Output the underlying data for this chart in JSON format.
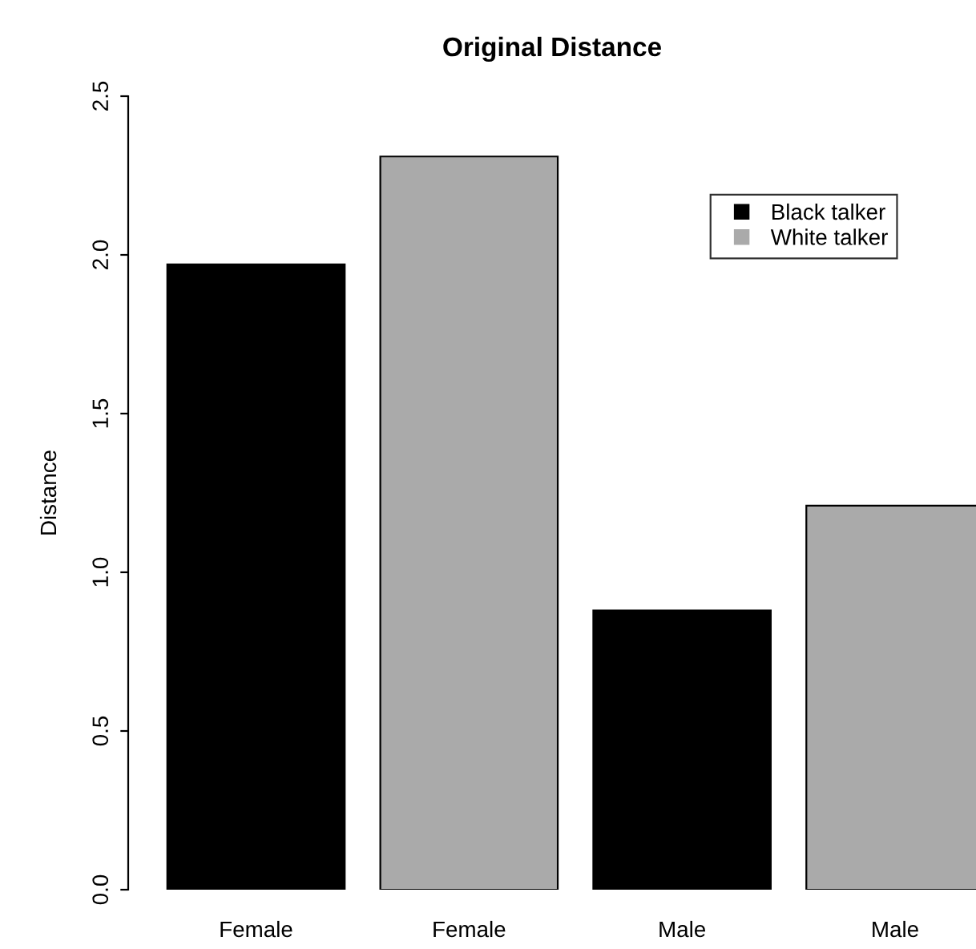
{
  "chart_data": {
    "type": "bar",
    "title": "Original Distance",
    "ylabel": "Distance",
    "categories": [
      "Female",
      "Female",
      "Male",
      "Male"
    ],
    "series": [
      {
        "name": "Black talker",
        "color": "#000000",
        "values": [
          1.97,
          null,
          0.88,
          null
        ]
      },
      {
        "name": "White talker",
        "color": "#aaaaaa",
        "values": [
          null,
          2.31,
          null,
          1.21
        ]
      }
    ],
    "ylim": [
      0,
      2.5
    ],
    "yticks": [
      {
        "value": 0,
        "label": "0.0"
      },
      0.5,
      {
        "value": 1,
        "label": "1.0"
      },
      1.5,
      {
        "value": 2,
        "label": "2.0"
      },
      2.5
    ],
    "grid": false,
    "legend": "top right"
  }
}
